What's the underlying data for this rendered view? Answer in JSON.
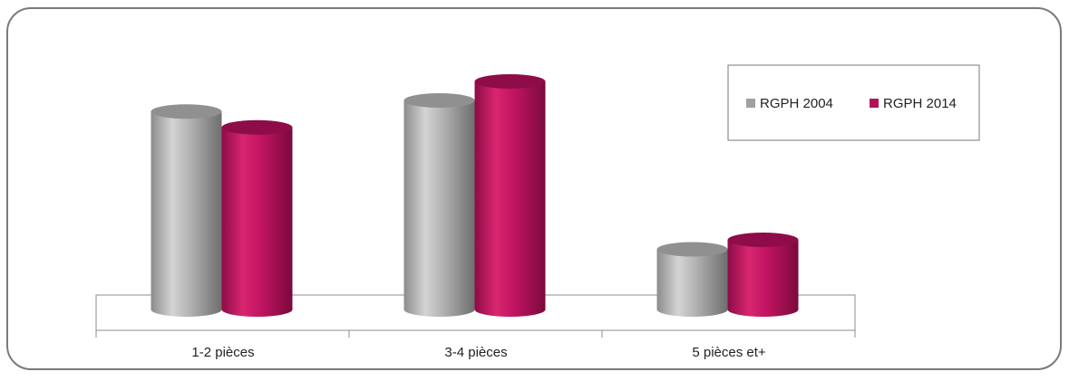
{
  "chart_data": {
    "type": "bar",
    "style": "3d-cylinder",
    "categories": [
      "1-2 pièces",
      "3-4 pièces",
      "5 pièces et+"
    ],
    "series": [
      {
        "name": "RGPH 2004",
        "color": "#a0a0a0",
        "values": [
          37.5,
          39.6,
          11.4
        ]
      },
      {
        "name": "RGPH 2014",
        "color": "#b5125c",
        "values": [
          34.5,
          43.2,
          13.2
        ]
      }
    ],
    "title": "",
    "xlabel": "",
    "ylabel": "",
    "ylim": [
      0,
      48
    ],
    "grid": false,
    "legend_position": "top-right"
  }
}
